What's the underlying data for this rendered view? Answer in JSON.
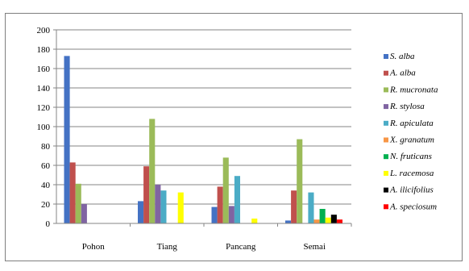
{
  "chart_data": {
    "type": "bar",
    "title": "",
    "xlabel": "",
    "ylabel": "",
    "ylim": [
      0,
      200
    ],
    "yticks": [
      0,
      20,
      40,
      60,
      80,
      100,
      120,
      140,
      160,
      180,
      200
    ],
    "grid": true,
    "legend_position": "right",
    "categories": [
      "Pohon",
      "Tiang",
      "Pancang",
      "Semai"
    ],
    "series": [
      {
        "name": "S. alba",
        "color": "#4472c4",
        "values": [
          173,
          23,
          17,
          3
        ]
      },
      {
        "name": "A. alba",
        "color": "#c0504d",
        "values": [
          63,
          59,
          38,
          34
        ]
      },
      {
        "name": "R. mucronata",
        "color": "#9bbb59",
        "values": [
          41,
          108,
          68,
          87
        ]
      },
      {
        "name": "R. stylosa",
        "color": "#8064a2",
        "values": [
          20,
          40,
          18,
          0
        ]
      },
      {
        "name": "R. apiculata",
        "color": "#4bacc6",
        "values": [
          0,
          34,
          49,
          32
        ]
      },
      {
        "name": "X. granatum",
        "color": "#f79646",
        "values": [
          0,
          0,
          0,
          4
        ]
      },
      {
        "name": "N. fruticans",
        "color": "#00b050",
        "values": [
          0,
          0,
          0,
          15
        ]
      },
      {
        "name": "L. racemosa",
        "color": "#ffff00",
        "values": [
          0,
          32,
          5,
          6
        ]
      },
      {
        "name": "A. ilicifolius",
        "color": "#000000",
        "values": [
          0,
          0,
          0,
          9
        ]
      },
      {
        "name": "A. speciosum",
        "color": "#ff0000",
        "values": [
          0,
          0,
          0,
          4
        ]
      }
    ]
  }
}
